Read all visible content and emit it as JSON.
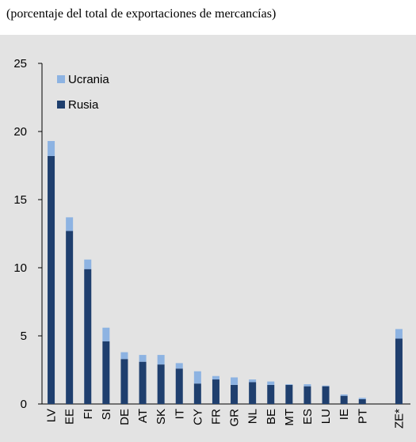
{
  "chart_data": {
    "type": "bar",
    "stacked": true,
    "subtitle": "(porcentaje del total de exportaciones de mercancías)",
    "categories": [
      "LV",
      "EE",
      "FI",
      "SI",
      "DE",
      "AT",
      "SK",
      "IT",
      "CY",
      "FR",
      "GR",
      "NL",
      "BE",
      "MT",
      "ES",
      "LU",
      "IE",
      "PT",
      null,
      "ZE*"
    ],
    "series": [
      {
        "name": "Rusia",
        "color": "#1f3f6e",
        "values": [
          18.2,
          12.7,
          9.9,
          4.6,
          3.3,
          3.1,
          2.9,
          2.6,
          1.5,
          1.8,
          1.4,
          1.6,
          1.4,
          1.4,
          1.3,
          1.3,
          0.6,
          0.35,
          null,
          4.8
        ]
      },
      {
        "name": "Ucrania",
        "color": "#8db3e2",
        "values": [
          1.1,
          1.0,
          0.7,
          1.0,
          0.5,
          0.5,
          0.7,
          0.4,
          0.9,
          0.25,
          0.55,
          0.2,
          0.25,
          0.05,
          0.15,
          0.05,
          0.1,
          0.1,
          null,
          0.7
        ]
      }
    ],
    "ylim": [
      0,
      25
    ],
    "yticks": [
      0,
      5,
      10,
      15,
      20,
      25
    ]
  }
}
